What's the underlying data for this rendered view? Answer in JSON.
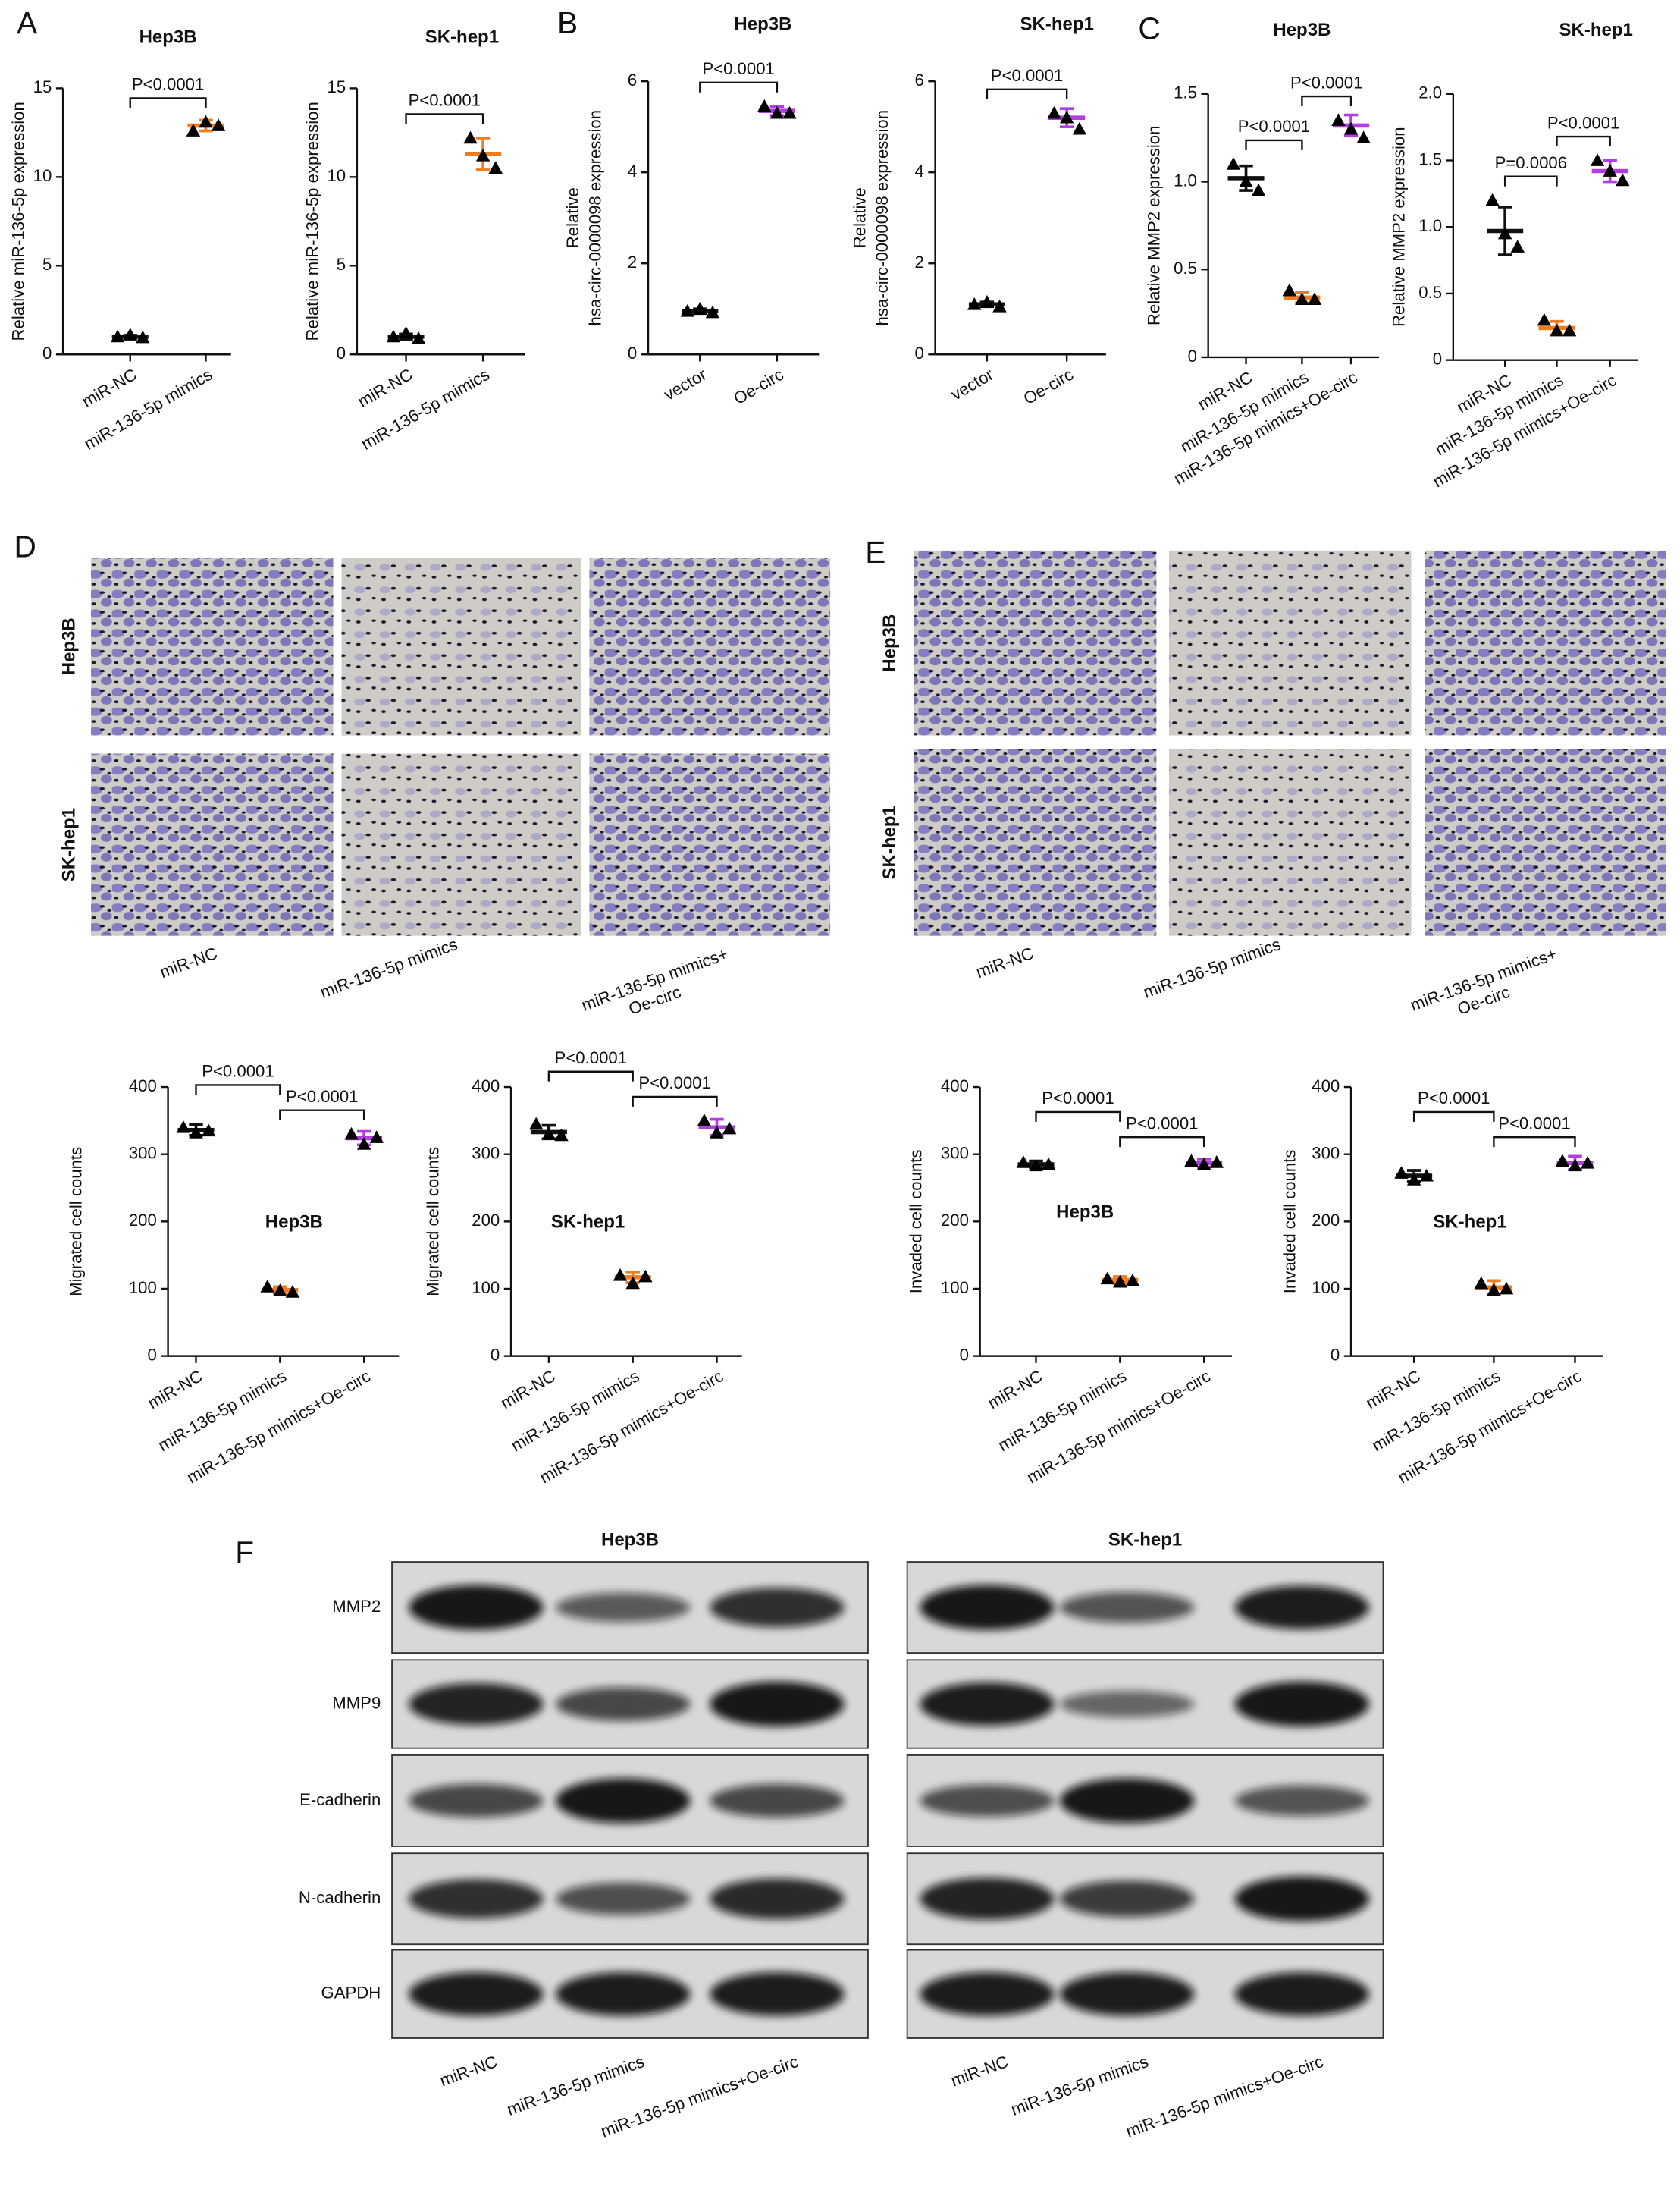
{
  "panel_labels": [
    "A",
    "B",
    "C",
    "D",
    "E",
    "F"
  ],
  "chart_data": [
    {
      "type": "dot",
      "title": "Hep3B",
      "ylabel": [
        "Relative miR-136-5p expression"
      ],
      "categories": [
        "miR-NC",
        "miR-136-5p mimics"
      ],
      "colors": [
        "#111111",
        "#f07c1f"
      ],
      "values": [
        [
          1.0,
          1.1,
          0.95
        ],
        [
          12.6,
          13.1,
          12.9
        ]
      ],
      "means": [
        1.0,
        12.9
      ],
      "errors": [
        0.08,
        0.3
      ],
      "ylim": [
        0,
        15
      ],
      "yticks": [
        0,
        5,
        10,
        15
      ],
      "comparisons": [
        {
          "pair": [
            0,
            1
          ],
          "label": "P<0.0001"
        }
      ]
    },
    {
      "type": "dot",
      "title": "SK-hep1",
      "ylabel": [
        "Relative miR-136-5p expression"
      ],
      "categories": [
        "miR-NC",
        "miR-136-5p mimics"
      ],
      "colors": [
        "#111111",
        "#f07c1f"
      ],
      "values": [
        [
          1.0,
          1.2,
          0.9
        ],
        [
          12.2,
          11.2,
          10.5
        ]
      ],
      "means": [
        1.0,
        11.3
      ],
      "errors": [
        0.15,
        0.9
      ],
      "ylim": [
        0,
        15
      ],
      "yticks": [
        0,
        5,
        10,
        15
      ],
      "comparisons": [
        {
          "pair": [
            0,
            1
          ],
          "label": "P<0.0001"
        }
      ]
    },
    {
      "type": "dot",
      "title": "Hep3B",
      "ylabel": [
        "Relative",
        "hsa-circ-0000098 expression"
      ],
      "categories": [
        "vector",
        "Oe-circ"
      ],
      "colors": [
        "#111111",
        "#b23de0"
      ],
      "values": [
        [
          0.95,
          1.0,
          0.92
        ],
        [
          5.45,
          5.3,
          5.3
        ]
      ],
      "means": [
        0.95,
        5.35
      ],
      "errors": [
        0.05,
        0.1
      ],
      "ylim": [
        0,
        6
      ],
      "yticks": [
        0,
        2,
        4,
        6
      ],
      "comparisons": [
        {
          "pair": [
            0,
            1
          ],
          "label": "P<0.0001"
        }
      ]
    },
    {
      "type": "dot",
      "title": "SK-hep1",
      "ylabel": [
        "Relative",
        "hsa-circ-0000098 expression"
      ],
      "categories": [
        "vector",
        "Oe-circ"
      ],
      "colors": [
        "#111111",
        "#b23de0"
      ],
      "values": [
        [
          1.1,
          1.15,
          1.05
        ],
        [
          5.3,
          5.2,
          4.95
        ]
      ],
      "means": [
        1.1,
        5.2
      ],
      "errors": [
        0.05,
        0.2
      ],
      "ylim": [
        0,
        6
      ],
      "yticks": [
        0,
        2,
        4,
        6
      ],
      "comparisons": [
        {
          "pair": [
            0,
            1
          ],
          "label": "P<0.0001"
        }
      ]
    },
    {
      "type": "dot",
      "title": "Hep3B",
      "ylabel": [
        "Relative MMP2 expression"
      ],
      "categories": [
        "miR-NC",
        "miR-136-5p mimics",
        "miR-136-5p mimics+Oe-circ"
      ],
      "colors": [
        "#111111",
        "#f07c1f",
        "#b23de0"
      ],
      "values": [
        [
          1.1,
          1.0,
          0.95
        ],
        [
          0.38,
          0.33,
          0.33
        ],
        [
          1.35,
          1.3,
          1.25
        ]
      ],
      "means": [
        1.02,
        0.34,
        1.32
      ],
      "errors": [
        0.07,
        0.03,
        0.06
      ],
      "ylim": [
        0,
        1.5
      ],
      "yticks": [
        0,
        0.5,
        {
          "value": 1,
          "label": "1.0"
        },
        1.5
      ],
      "comparisons": [
        {
          "pair": [
            0,
            1
          ],
          "label": "P<0.0001"
        },
        {
          "pair": [
            1,
            2
          ],
          "label": "P<0.0001"
        }
      ]
    },
    {
      "type": "dot",
      "title": "SK-hep1",
      "ylabel": [
        "Relative MMP2 expression"
      ],
      "categories": [
        "miR-NC",
        "miR-136-5p mimics",
        "miR-136-5p mimics+Oe-circ"
      ],
      "colors": [
        "#111111",
        "#f07c1f",
        "#b23de0"
      ],
      "values": [
        [
          1.2,
          0.95,
          0.85
        ],
        [
          0.3,
          0.22,
          0.22
        ],
        [
          1.5,
          1.42,
          1.35
        ]
      ],
      "means": [
        0.97,
        0.24,
        1.42
      ],
      "errors": [
        0.18,
        0.05,
        0.08
      ],
      "ylim": [
        0,
        2
      ],
      "yticks": [
        0,
        0.5,
        {
          "value": 1,
          "label": "1.0"
        },
        1.5,
        {
          "value": 2,
          "label": "2.0"
        }
      ],
      "comparisons": [
        {
          "pair": [
            0,
            1
          ],
          "label": "P=0.0006"
        },
        {
          "pair": [
            1,
            2
          ],
          "label": "P<0.0001"
        }
      ]
    },
    {
      "type": "dot",
      "title": "Hep3B",
      "ylabel": [
        "Migrated cell counts"
      ],
      "categories": [
        "miR-NC",
        "miR-136-5p mimics",
        "miR-136-5p mimics+Oe-circ"
      ],
      "colors": [
        "#111111",
        "#f07c1f",
        "#b23de0"
      ],
      "values": [
        [
          340,
          332,
          335
        ],
        [
          103,
          97,
          95
        ],
        [
          330,
          315,
          325
        ]
      ],
      "means": [
        336,
        98,
        324
      ],
      "errors": [
        8,
        5,
        10
      ],
      "ylim": [
        0,
        400
      ],
      "yticks": [
        0,
        100,
        200,
        300,
        400
      ],
      "comparisons": [
        {
          "pair": [
            0,
            1
          ],
          "label": "P<0.0001"
        },
        {
          "pair": [
            1,
            2
          ],
          "label": "P<0.0001"
        }
      ]
    },
    {
      "type": "dot",
      "title": "SK-hep1",
      "ylabel": [
        "Migrated cell counts"
      ],
      "categories": [
        "miR-NC",
        "miR-136-5p mimics",
        "miR-136-5p mimics+Oe-circ"
      ],
      "colors": [
        "#111111",
        "#f07c1f",
        "#b23de0"
      ],
      "values": [
        [
          345,
          330,
          328
        ],
        [
          120,
          108,
          118
        ],
        [
          350,
          332,
          338
        ]
      ],
      "means": [
        333,
        117,
        340
      ],
      "errors": [
        10,
        8,
        12
      ],
      "ylim": [
        0,
        400
      ],
      "yticks": [
        0,
        100,
        200,
        300,
        400
      ],
      "comparisons": [
        {
          "pair": [
            0,
            1
          ],
          "label": "P<0.0001"
        },
        {
          "pair": [
            1,
            2
          ],
          "label": "P<0.0001"
        }
      ]
    },
    {
      "type": "dot",
      "title": "Hep3B",
      "ylabel": [
        "Invaded cell counts"
      ],
      "categories": [
        "miR-NC",
        "miR-136-5p mimics",
        "miR-136-5p mimics+Oe-circ"
      ],
      "colors": [
        "#111111",
        "#f07c1f",
        "#b23de0"
      ],
      "values": [
        [
          288,
          283,
          285
        ],
        [
          115,
          110,
          112
        ],
        [
          290,
          285,
          288
        ]
      ],
      "means": [
        285,
        113,
        287
      ],
      "errors": [
        5,
        5,
        6
      ],
      "ylim": [
        0,
        400
      ],
      "yticks": [
        0,
        100,
        200,
        300,
        400
      ],
      "comparisons": [
        {
          "pair": [
            0,
            1
          ],
          "label": "P<0.0001"
        },
        {
          "pair": [
            1,
            2
          ],
          "label": "P<0.0001"
        }
      ]
    },
    {
      "type": "dot",
      "title": "SK-hep1",
      "ylabel": [
        "Invaded cell counts"
      ],
      "categories": [
        "miR-NC",
        "miR-136-5p mimics",
        "miR-136-5p mimics+Oe-circ"
      ],
      "colors": [
        "#111111",
        "#f07c1f",
        "#b23de0"
      ],
      "values": [
        [
          272,
          262,
          268
        ],
        [
          108,
          98,
          100
        ],
        [
          290,
          283,
          287
        ]
      ],
      "means": [
        268,
        102,
        287
      ],
      "errors": [
        8,
        10,
        10
      ],
      "ylim": [
        0,
        400
      ],
      "yticks": [
        0,
        100,
        200,
        300,
        400
      ],
      "comparisons": [
        {
          "pair": [
            0,
            1
          ],
          "label": "P<0.0001"
        },
        {
          "pair": [
            1,
            2
          ],
          "label": "P<0.0001"
        }
      ]
    }
  ],
  "migration_images": {
    "row_labels": [
      "Hep3B",
      "SK-hep1"
    ],
    "column_labels": [
      [
        "miR-NC"
      ],
      [
        "miR-136-5p mimics"
      ],
      [
        "miR-136-5p mimics+",
        "Oe-circ"
      ]
    ]
  },
  "invasion_images": {
    "row_labels": [
      "Hep3B",
      "SK-hep1"
    ],
    "column_labels": [
      [
        "miR-NC"
      ],
      [
        "miR-136-5p mimics"
      ],
      [
        "miR-136-5p mimics+",
        "Oe-circ"
      ]
    ]
  },
  "western_blot": {
    "panels": [
      "Hep3B",
      "SK-hep1"
    ],
    "proteins": [
      "MMP2",
      "MMP9",
      "E-cadherin",
      "N-cadherin",
      "GAPDH"
    ],
    "lanes": [
      "miR-NC",
      "miR-136-5p mimics",
      "miR-136-5p mimics+Oe-circ"
    ]
  }
}
